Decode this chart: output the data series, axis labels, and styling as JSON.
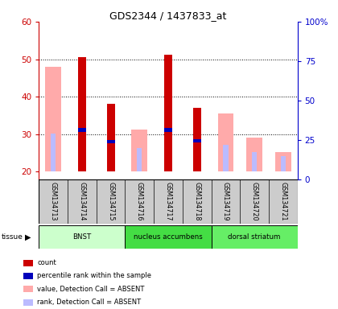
{
  "title": "GDS2344 / 1437833_at",
  "samples": [
    "GSM134713",
    "GSM134714",
    "GSM134715",
    "GSM134716",
    "GSM134717",
    "GSM134718",
    "GSM134719",
    "GSM134720",
    "GSM134721"
  ],
  "red_bars": [
    null,
    50.5,
    38.0,
    null,
    51.2,
    37.0,
    null,
    null,
    null
  ],
  "blue_dots": [
    null,
    31.2,
    28.0,
    null,
    31.2,
    28.2,
    null,
    null,
    null
  ],
  "pink_bars": [
    48.0,
    null,
    null,
    31.2,
    null,
    null,
    35.5,
    29.0,
    25.2
  ],
  "light_blue_bars": [
    30.2,
    null,
    null,
    26.2,
    null,
    null,
    27.2,
    25.2,
    24.2
  ],
  "ylim_left": [
    18,
    60
  ],
  "ylim_right": [
    0,
    100
  ],
  "yticks_left": [
    20,
    30,
    40,
    50,
    60
  ],
  "ytick_labels_right": [
    "0",
    "25",
    "50",
    "75",
    "100%"
  ],
  "baseline": 20,
  "tissue_colors": [
    "#ccffcc",
    "#44dd44",
    "#66ee66"
  ],
  "tissue_groups": [
    {
      "label": "BNST",
      "start": 0,
      "end": 3
    },
    {
      "label": "nucleus accumbens",
      "start": 3,
      "end": 6
    },
    {
      "label": "dorsal striatum",
      "start": 6,
      "end": 9
    }
  ],
  "red_color": "#cc0000",
  "blue_color": "#0000bb",
  "pink_color": "#ffaaaa",
  "light_blue_color": "#bbbbff",
  "axis_color_left": "#cc0000",
  "axis_color_right": "#0000cc",
  "sample_area_color": "#cccccc",
  "legend_colors": [
    "#cc0000",
    "#0000bb",
    "#ffaaaa",
    "#bbbbff"
  ],
  "legend_labels": [
    "count",
    "percentile rank within the sample",
    "value, Detection Call = ABSENT",
    "rank, Detection Call = ABSENT"
  ]
}
